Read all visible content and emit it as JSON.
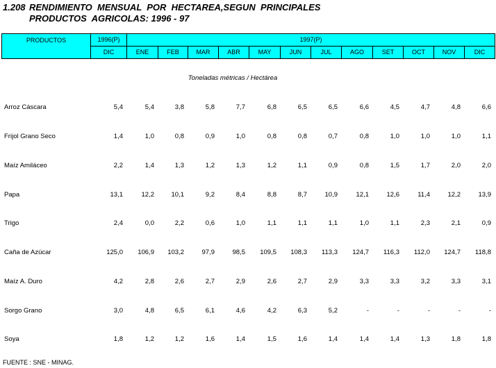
{
  "title": {
    "number": "1.208",
    "line1": "RENDIMIENTO  MENSUAL  POR  HECTAREA,SEGUN  PRINCIPALES",
    "line2": "PRODUCTOS  AGRICOLAS: 1996 - 97"
  },
  "table": {
    "header": {
      "product": "PRODUCTOS",
      "year1": "1996(P)",
      "year2": "1997(P)",
      "months": [
        "DIC",
        "ENE",
        "FEB",
        "MAR",
        "ABR",
        "MAY",
        "JUN",
        "JUL",
        "AGO",
        "SET",
        "OCT",
        "NOV",
        "DIC"
      ]
    },
    "unit": "Toneladas métricas / Hectárea",
    "rows": [
      [
        "Arroz Cáscara",
        "5,4",
        "5,4",
        "3,8",
        "5,8",
        "7,7",
        "6,8",
        "6,5",
        "6,5",
        "6,6",
        "4,5",
        "4,7",
        "4,8",
        "6,6"
      ],
      [
        "Frijol Grano Seco",
        "1,4",
        "1,0",
        "0,8",
        "0,9",
        "1,0",
        "0,8",
        "0,8",
        "0,7",
        "0,8",
        "1,0",
        "1,0",
        "1,0",
        "1,1"
      ],
      [
        "Maíz Amiláceo",
        "2,2",
        "1,4",
        "1,3",
        "1,2",
        "1,3",
        "1,2",
        "1,1",
        "0,9",
        "0,8",
        "1,5",
        "1,7",
        "2,0",
        "2,0"
      ],
      [
        "Papa",
        "13,1",
        "12,2",
        "10,1",
        "9,2",
        "8,4",
        "8,8",
        "8,7",
        "10,9",
        "12,1",
        "12,6",
        "11,4",
        "12,2",
        "13,9"
      ],
      [
        "Trigo",
        "2,4",
        "0,0",
        "2,2",
        "0,6",
        "1,0",
        "1,1",
        "1,1",
        "1,1",
        "1,0",
        "1,1",
        "2,3",
        "2,1",
        "0,9"
      ],
      [
        "Caña de Azúcar",
        "125,0",
        "106,9",
        "103,2",
        "97,9",
        "98,5",
        "109,5",
        "108,3",
        "113,3",
        "124,7",
        "116,3",
        "112,0",
        "124,7",
        "118,8"
      ],
      [
        "Maíz A. Duro",
        "4,2",
        "2,8",
        "2,6",
        "2,7",
        "2,9",
        "2,6",
        "2,7",
        "2,9",
        "3,3",
        "3,3",
        "3,2",
        "3,3",
        "3,1"
      ],
      [
        "Sorgo Grano",
        "3,0",
        "4,8",
        "6,5",
        "6,1",
        "4,6",
        "4,2",
        "6,3",
        "5,2",
        "-",
        "-",
        "-",
        "-",
        "-"
      ],
      [
        "Soya",
        "1,8",
        "1,2",
        "1,2",
        "1,6",
        "1,4",
        "1,5",
        "1,6",
        "1,4",
        "1,4",
        "1,4",
        "1,3",
        "1,8",
        "1,8"
      ]
    ]
  },
  "footer": "FUENTE : SNE - MINAG."
}
